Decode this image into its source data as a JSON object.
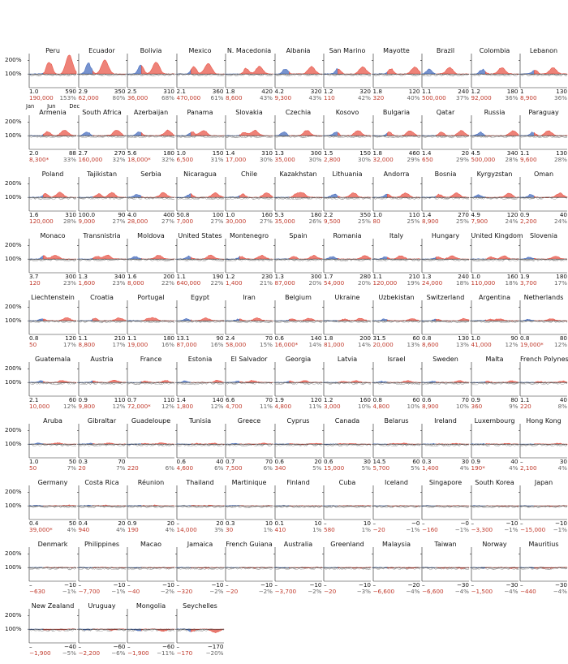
{
  "colors": {
    "before": "#4a6fbf",
    "after": "#e8584b",
    "excess": "#c0392b",
    "baseline": "#222222",
    "grey": "#9a9a9a"
  },
  "y_ticks": [
    "200%",
    "100%"
  ],
  "x_ticks": [
    "Jan",
    "Jun",
    "Dec"
  ],
  "chart_data": {
    "type": "area",
    "ylim": [
      0,
      250
    ],
    "y_ticks": [
      "200%",
      "100%"
    ],
    "x_ticks": [
      "Jan",
      "Jun",
      "Dec"
    ],
    "countries": [
      {
        "name": "Peru",
        "lo": "1.0",
        "hi": "590",
        "excess": "190,000",
        "pct": "153%"
      },
      {
        "name": "Ecuador",
        "lo": "2.9",
        "hi": "350",
        "excess": "62,000",
        "pct": "80%"
      },
      {
        "name": "Bolivia",
        "lo": "2.5",
        "hi": "310",
        "excess": "36,000",
        "pct": "68%"
      },
      {
        "name": "Mexico",
        "lo": "2.1",
        "hi": "360",
        "excess": "470,000",
        "pct": "61%"
      },
      {
        "name": "N. Macedonia",
        "lo": "1.8",
        "hi": "420",
        "excess": "8,600",
        "pct": "43%"
      },
      {
        "name": "Albania",
        "lo": "4.2",
        "hi": "320",
        "excess": "9,300",
        "pct": "43%"
      },
      {
        "name": "San Marino",
        "lo": "1.2",
        "hi": "320",
        "excess": "110",
        "pct": "42%"
      },
      {
        "name": "Mayotte",
        "lo": "1.8",
        "hi": "120",
        "excess": "320",
        "pct": "40%"
      },
      {
        "name": "Brazil",
        "lo": "1.1",
        "hi": "240",
        "excess": "500,000",
        "pct": "37%"
      },
      {
        "name": "Colombia",
        "lo": "1.2",
        "hi": "180",
        "excess": "92,000",
        "pct": "36%"
      },
      {
        "name": "Lebanon",
        "lo": "1",
        "hi": "130",
        "excess": "8,900",
        "pct": "36%"
      },
      {
        "name": "Armenia",
        "lo": "2.0",
        "hi": "88",
        "excess": "8,300*",
        "pct": "33%"
      },
      {
        "name": "South Africa",
        "lo": "2.7",
        "hi": "270",
        "excess": "160,000",
        "pct": "32%"
      },
      {
        "name": "Azerbaijan",
        "lo": "5.6",
        "hi": "180",
        "excess": "18,000*",
        "pct": "32%"
      },
      {
        "name": "Panama",
        "lo": "1.0",
        "hi": "150",
        "excess": "6,500",
        "pct": "31%"
      },
      {
        "name": "Slovakia",
        "lo": "1.4",
        "hi": "310",
        "excess": "17,000",
        "pct": "30%"
      },
      {
        "name": "Czechia",
        "lo": "1.3",
        "hi": "300",
        "excess": "35,000",
        "pct": "30%"
      },
      {
        "name": "Kosovo",
        "lo": "1.5",
        "hi": "150",
        "excess": "2,800",
        "pct": "30%"
      },
      {
        "name": "Bulgaria",
        "lo": "1.8",
        "hi": "460",
        "excess": "32,000",
        "pct": "29%"
      },
      {
        "name": "Qatar",
        "lo": "1.4",
        "hi": "20",
        "excess": "650",
        "pct": "29%"
      },
      {
        "name": "Russia",
        "lo": "4.5",
        "hi": "340",
        "excess": "500,000",
        "pct": "28%"
      },
      {
        "name": "Paraguay",
        "lo": "1.1",
        "hi": "130",
        "excess": "9,600",
        "pct": "28%"
      },
      {
        "name": "Poland",
        "lo": "1.6",
        "hi": "310",
        "excess": "120,000",
        "pct": "28%"
      },
      {
        "name": "Tajikistan",
        "lo": "100.0",
        "hi": "90",
        "excess": "9,000",
        "pct": "27%"
      },
      {
        "name": "Serbia",
        "lo": "4.0",
        "hi": "400",
        "excess": "28,000",
        "pct": "27%"
      },
      {
        "name": "Nicaragua",
        "lo": "50.8",
        "hi": "100",
        "excess": "7,000",
        "pct": "27%"
      },
      {
        "name": "Chile",
        "lo": "1.0",
        "hi": "160",
        "excess": "30,000",
        "pct": "27%"
      },
      {
        "name": "Kazakhstan",
        "lo": "5.3",
        "hi": "180",
        "excess": "35,000",
        "pct": "26%"
      },
      {
        "name": "Lithuania",
        "lo": "2.2",
        "hi": "350",
        "excess": "9,500",
        "pct": "25%"
      },
      {
        "name": "Andorra",
        "lo": "1.0",
        "hi": "110",
        "excess": "80",
        "pct": "25%"
      },
      {
        "name": "Bosnia",
        "lo": "1.4",
        "hi": "270",
        "excess": "8,900",
        "pct": "25%"
      },
      {
        "name": "Kyrgyzstan",
        "lo": "4.9",
        "hi": "120",
        "excess": "7,900",
        "pct": "24%"
      },
      {
        "name": "Oman",
        "lo": "0.9",
        "hi": "40",
        "excess": "2,200",
        "pct": "24%"
      },
      {
        "name": "Monaco",
        "lo": "3.7",
        "hi": "300",
        "excess": "120",
        "pct": "23%"
      },
      {
        "name": "Transnistria",
        "lo": "1.3",
        "hi": "340",
        "excess": "1,600",
        "pct": "23%"
      },
      {
        "name": "Moldova",
        "lo": "1.6",
        "hi": "200",
        "excess": "8,000",
        "pct": "22%"
      },
      {
        "name": "United States",
        "lo": "1.1",
        "hi": "190",
        "excess": "640,000",
        "pct": "22%"
      },
      {
        "name": "Montenegro",
        "lo": "1.2",
        "hi": "230",
        "excess": "1,400",
        "pct": "21%"
      },
      {
        "name": "Spain",
        "lo": "1.3",
        "hi": "300",
        "excess": "87,000",
        "pct": "20%"
      },
      {
        "name": "Romania",
        "lo": "1.7",
        "hi": "280",
        "excess": "54,000",
        "pct": "20%"
      },
      {
        "name": "Italy",
        "lo": "1.1",
        "hi": "210",
        "excess": "120,000",
        "pct": "19%"
      },
      {
        "name": "Hungary",
        "lo": "1.3",
        "hi": "240",
        "excess": "24,000",
        "pct": "18%"
      },
      {
        "name": "United Kingdom",
        "lo": "1.0",
        "hi": "160",
        "excess": "110,000",
        "pct": "18%"
      },
      {
        "name": "Slovenia",
        "lo": "1.9",
        "hi": "180",
        "excess": "3,700",
        "pct": "17%"
      },
      {
        "name": "Liechtenstein",
        "lo": "0.8",
        "hi": "120",
        "excess": "50",
        "pct": "17%"
      },
      {
        "name": "Croatia",
        "lo": "1.1",
        "hi": "210",
        "excess": "8,800",
        "pct": "17%"
      },
      {
        "name": "Portugal",
        "lo": "1.1",
        "hi": "180",
        "excess": "19,000",
        "pct": "16%"
      },
      {
        "name": "Egypt",
        "lo": "13.1",
        "hi": "90",
        "excess": "87,000",
        "pct": "16%"
      },
      {
        "name": "Iran",
        "lo": "2.4",
        "hi": "70",
        "excess": "58,000",
        "pct": "15%"
      },
      {
        "name": "Belgium",
        "lo": "0.6",
        "hi": "140",
        "excess": "16,000*",
        "pct": "14%"
      },
      {
        "name": "Ukraine",
        "lo": "1.8",
        "hi": "200",
        "excess": "81,000",
        "pct": "14%"
      },
      {
        "name": "Uzbekistan",
        "lo": "31.5",
        "hi": "60",
        "excess": "20,000",
        "pct": "13%"
      },
      {
        "name": "Switzerland",
        "lo": "0.8",
        "hi": "130",
        "excess": "8,600",
        "pct": "13%"
      },
      {
        "name": "Argentina",
        "lo": "1.0",
        "hi": "90",
        "excess": "41,000",
        "pct": "12%"
      },
      {
        "name": "Netherlands",
        "lo": "0.8",
        "hi": "80",
        "excess": "19,000*",
        "pct": "12%"
      },
      {
        "name": "Guatemala",
        "lo": "2.1",
        "hi": "60",
        "excess": "10,000",
        "pct": "12%"
      },
      {
        "name": "Austria",
        "lo": "0.9",
        "hi": "110",
        "excess": "9,800",
        "pct": "12%"
      },
      {
        "name": "France",
        "lo": "0.7",
        "hi": "110",
        "excess": "72,000*",
        "pct": "12%"
      },
      {
        "name": "Estonia",
        "lo": "1.4",
        "hi": "140",
        "excess": "1,800",
        "pct": "12%"
      },
      {
        "name": "El Salvador",
        "lo": "6.6",
        "hi": "70",
        "excess": "4,700",
        "pct": "11%"
      },
      {
        "name": "Georgia",
        "lo": "1.9",
        "hi": "120",
        "excess": "4,800",
        "pct": "11%"
      },
      {
        "name": "Latvia",
        "lo": "1.2",
        "hi": "160",
        "excess": "3,000",
        "pct": "10%"
      },
      {
        "name": "Israel",
        "lo": "0.8",
        "hi": "60",
        "excess": "4,800",
        "pct": "10%"
      },
      {
        "name": "Sweden",
        "lo": "0.6",
        "hi": "70",
        "excess": "8,900",
        "pct": "10%"
      },
      {
        "name": "Malta",
        "lo": "0.9",
        "hi": "80",
        "excess": "360",
        "pct": "9%"
      },
      {
        "name": "French Polynesia",
        "lo": "1.1",
        "hi": "40",
        "excess": "220",
        "pct": "8%"
      },
      {
        "name": "Aruba",
        "lo": "1.0",
        "hi": "50",
        "excess": "50",
        "pct": "7%"
      },
      {
        "name": "Gibraltar",
        "lo": "0.3",
        "hi": "70",
        "excess": "20",
        "pct": "7%"
      },
      {
        "name": "Guadeloupe",
        "lo": "",
        "hi": "",
        "excess": "220",
        "pct": "6%"
      },
      {
        "name": "Tunisia",
        "lo": "0.6",
        "hi": "40",
        "excess": "4,600",
        "pct": "6%"
      },
      {
        "name": "Greece",
        "lo": "0.7",
        "hi": "70",
        "excess": "7,500",
        "pct": "6%"
      },
      {
        "name": "Cyprus",
        "lo": "0.6",
        "hi": "20",
        "excess": "340",
        "pct": "5%"
      },
      {
        "name": "Canada",
        "lo": "0.6",
        "hi": "30",
        "excess": "15,000",
        "pct": "5%"
      },
      {
        "name": "Belarus",
        "lo": "14.5",
        "hi": "60",
        "excess": "5,700",
        "pct": "5%"
      },
      {
        "name": "Ireland",
        "lo": "0.3",
        "hi": "30",
        "excess": "1,400",
        "pct": "4%"
      },
      {
        "name": "Luxembourg",
        "lo": "0.9",
        "hi": "40",
        "excess": "190*",
        "pct": "4%"
      },
      {
        "name": "Hong Kong",
        "lo": "–",
        "hi": "30",
        "excess": "2,100",
        "pct": "4%"
      },
      {
        "name": "Germany",
        "lo": "0.4",
        "hi": "50",
        "excess": "39,000*",
        "pct": "4%"
      },
      {
        "name": "Costa Rica",
        "lo": "0.4",
        "hi": "20",
        "excess": "940",
        "pct": "4%"
      },
      {
        "name": "Réunion",
        "lo": "0.9",
        "hi": "20",
        "excess": "190",
        "pct": "4%"
      },
      {
        "name": "Thailand",
        "lo": "–",
        "hi": "20",
        "excess": "14,000",
        "pct": "3%"
      },
      {
        "name": "Martinique",
        "lo": "0.3",
        "hi": "10",
        "excess": "30",
        "pct": "1%"
      },
      {
        "name": "Finland",
        "lo": "0.1",
        "hi": "10",
        "excess": "410",
        "pct": "1%"
      },
      {
        "name": "Cuba",
        "lo": "–",
        "hi": "10",
        "excess": "580",
        "pct": "1%"
      },
      {
        "name": "Iceland",
        "lo": "–",
        "hi": "−0",
        "excess": "−20",
        "pct": "−1%"
      },
      {
        "name": "Singapore",
        "lo": "–",
        "hi": "−0",
        "excess": "−160",
        "pct": "−1%"
      },
      {
        "name": "South Korea",
        "lo": "–",
        "hi": "−10",
        "excess": "−3,300",
        "pct": "−1%"
      },
      {
        "name": "Japan",
        "lo": "–",
        "hi": "−10",
        "excess": "−15,000",
        "pct": "−1%"
      },
      {
        "name": "Denmark",
        "lo": "–",
        "hi": "−10",
        "excess": "−630",
        "pct": "−1%"
      },
      {
        "name": "Philippines",
        "lo": "–",
        "hi": "−10",
        "excess": "−7,700",
        "pct": "−1%"
      },
      {
        "name": "Macao",
        "lo": "–",
        "hi": "−10",
        "excess": "−40",
        "pct": "−2%"
      },
      {
        "name": "Jamaica",
        "lo": "–",
        "hi": "−10",
        "excess": "−320",
        "pct": "−2%"
      },
      {
        "name": "French Guiana",
        "lo": "–",
        "hi": "−10",
        "excess": "−20",
        "pct": "−2%"
      },
      {
        "name": "Australia",
        "lo": "–",
        "hi": "−10",
        "excess": "−3,700",
        "pct": "−2%"
      },
      {
        "name": "Greenland",
        "lo": "–",
        "hi": "−10",
        "excess": "−20",
        "pct": "−3%"
      },
      {
        "name": "Malaysia",
        "lo": "–",
        "hi": "−20",
        "excess": "−6,600",
        "pct": "−4%"
      },
      {
        "name": "Taiwan",
        "lo": "–",
        "hi": "−30",
        "excess": "−6,600",
        "pct": "−4%"
      },
      {
        "name": "Norway",
        "lo": "–",
        "hi": "−30",
        "excess": "−1,500",
        "pct": "−4%"
      },
      {
        "name": "Mauritius",
        "lo": "–",
        "hi": "−30",
        "excess": "−440",
        "pct": "−4%"
      },
      {
        "name": "New Zealand",
        "lo": "–",
        "hi": "−40",
        "excess": "−1,900",
        "pct": "−5%"
      },
      {
        "name": "Uruguay",
        "lo": "–",
        "hi": "−60",
        "excess": "−2,200",
        "pct": "−6%"
      },
      {
        "name": "Mongolia",
        "lo": "–",
        "hi": "−60",
        "excess": "−1,900",
        "pct": "−11%"
      },
      {
        "name": "Seychelles",
        "lo": "–",
        "hi": "−170",
        "excess": "−170",
        "pct": "−20%"
      }
    ]
  }
}
